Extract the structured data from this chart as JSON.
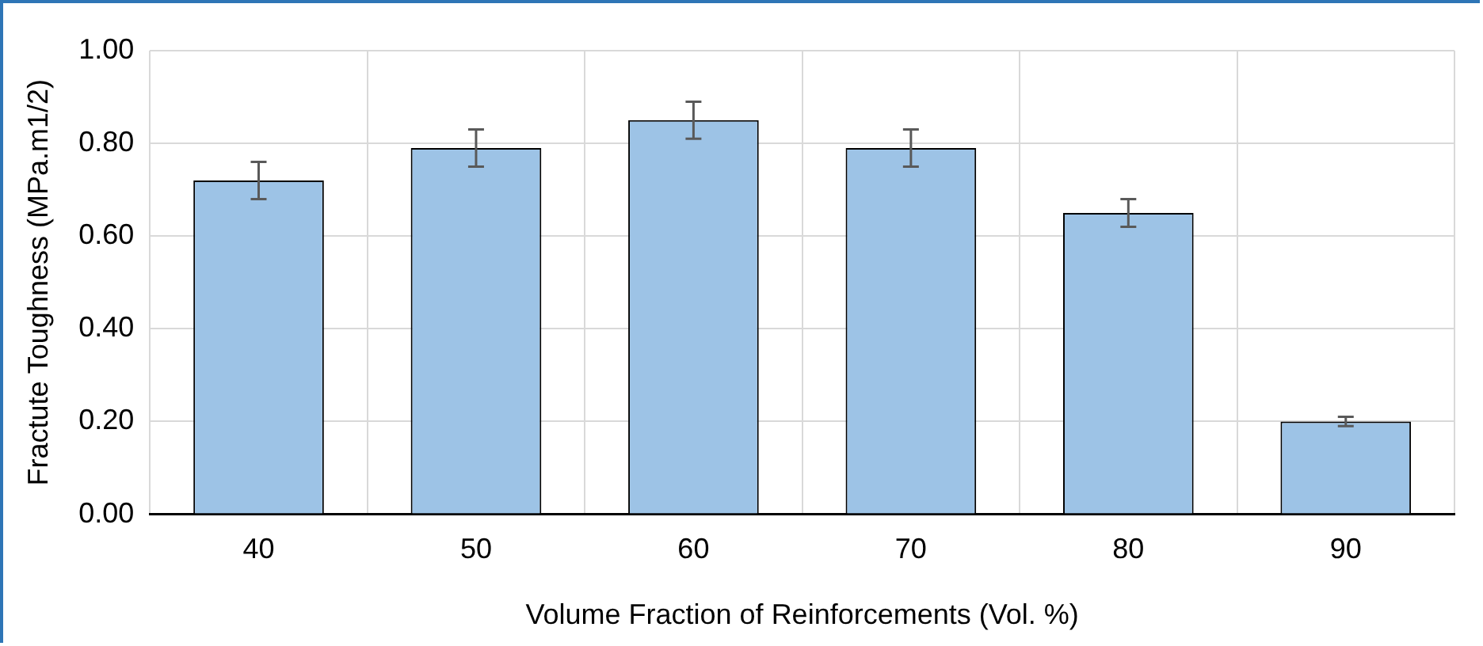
{
  "chart_data": {
    "type": "bar",
    "xlabel": "Volume Fraction of Reinforcements (Vol. %)",
    "ylabel": "Fractute Toughness (MPa.m1/2)",
    "categories": [
      "40",
      "50",
      "60",
      "70",
      "80",
      "90"
    ],
    "values": [
      0.72,
      0.79,
      0.85,
      0.79,
      0.65,
      0.2
    ],
    "errors": [
      0.04,
      0.04,
      0.04,
      0.04,
      0.03,
      0.01
    ],
    "color": "#9dc3e6",
    "ylim": [
      0,
      1
    ],
    "yticks": [
      {
        "value": 0,
        "label": "0.00"
      },
      {
        "value": 0.2,
        "label": "0.20"
      },
      {
        "value": 0.4,
        "label": "0.40"
      },
      {
        "value": 0.6,
        "label": "0.60"
      },
      {
        "value": 0.8,
        "label": "0.80"
      },
      {
        "value": 1,
        "label": "1.00"
      }
    ],
    "grid": true,
    "legend": false
  }
}
